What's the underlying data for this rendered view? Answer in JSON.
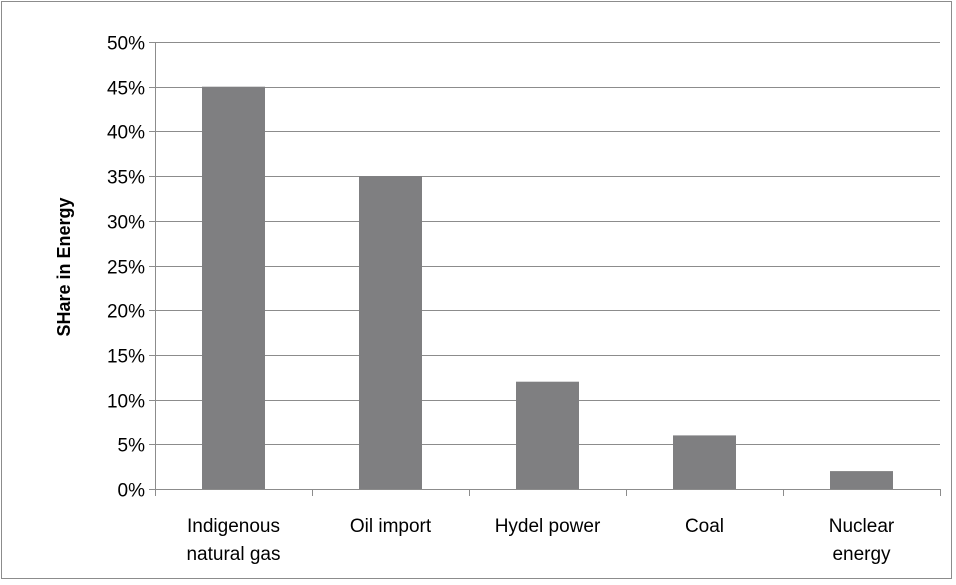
{
  "chart_data": {
    "type": "bar",
    "title": "",
    "xlabel": "",
    "ylabel": "SHare in Energy",
    "categories": [
      [
        "Indigenous",
        "natural gas"
      ],
      [
        "Oil import"
      ],
      [
        "Hydel power"
      ],
      [
        "Coal"
      ],
      [
        "Nuclear",
        "energy"
      ]
    ],
    "values": [
      45,
      35,
      12,
      6,
      2
    ],
    "ylim": [
      0,
      50
    ],
    "yticks": [
      0,
      5,
      10,
      15,
      20,
      25,
      30,
      35,
      40,
      45,
      50
    ],
    "ytick_labels": [
      "0%",
      "5%",
      "10%",
      "15%",
      "20%",
      "25%",
      "30%",
      "35%",
      "40%",
      "45%",
      "50%"
    ],
    "grid": true,
    "legend": "none",
    "bar_color": "#7f7f81",
    "grid_color": "#8c8c8c"
  }
}
